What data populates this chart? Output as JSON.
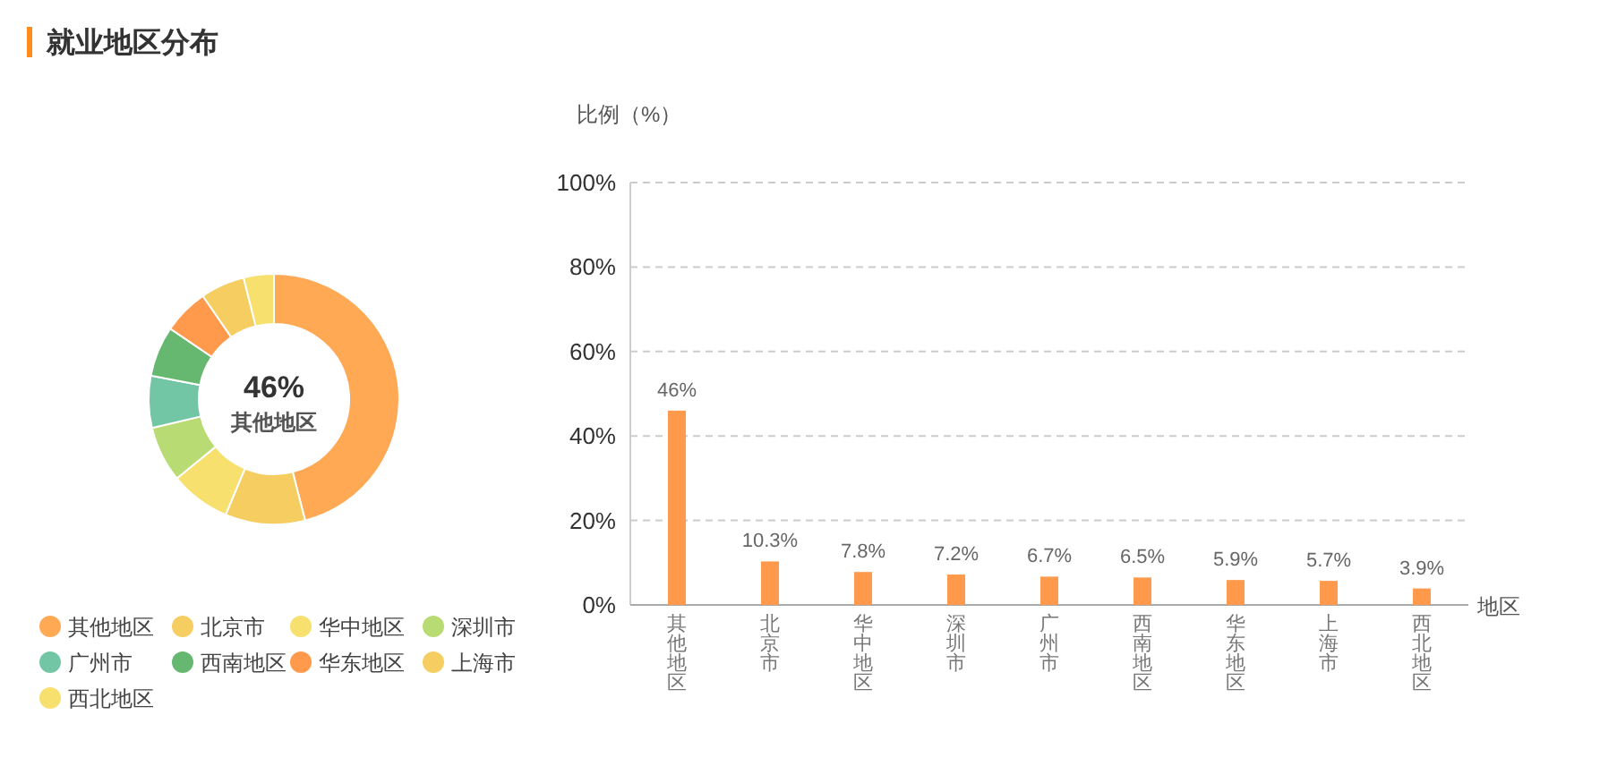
{
  "chart_data": [
    {
      "type": "donut",
      "title": "就业地区分布",
      "categories": [
        "其他地区",
        "北京市",
        "华中地区",
        "深圳市",
        "广州市",
        "西南地区",
        "华东地区",
        "上海市",
        "西北地区"
      ],
      "values": [
        46,
        10.3,
        7.8,
        7.2,
        6.7,
        6.5,
        5.9,
        5.7,
        3.9
      ],
      "colors": [
        "#ffa955",
        "#f5cd61",
        "#f7e06e",
        "#b8db73",
        "#73c6a5",
        "#66b870",
        "#ff9a4d",
        "#f5cd61",
        "#f7e06e"
      ],
      "annotations": [
        "46%",
        "其他地区"
      ],
      "legend": "bottom"
    },
    {
      "type": "bar",
      "ylabel": "比例（%）",
      "xlabel": "地区",
      "categories": [
        "其他地区",
        "北京市",
        "华中地区",
        "深圳市",
        "广州市",
        "西南地区",
        "华东地区",
        "上海市",
        "西北地区"
      ],
      "series": [
        {
          "color": "#ff9a4d",
          "values": [
            46,
            10.3,
            7.8,
            7.2,
            6.7,
            6.5,
            5.9,
            5.7,
            3.9
          ]
        }
      ],
      "value_labels": [
        "46%",
        "10.3%",
        "7.8%",
        "7.2%",
        "6.7%",
        "6.5%",
        "5.9%",
        "5.7%",
        "3.9%"
      ],
      "ylim": [
        0,
        100
      ],
      "yticks": [
        {
          "value": 0,
          "label": "0%"
        },
        {
          "value": 20,
          "label": "20%"
        },
        {
          "value": 40,
          "label": "40%"
        },
        {
          "value": 60,
          "label": "60%"
        },
        {
          "value": 80,
          "label": "80%"
        },
        {
          "value": 100,
          "label": "100%"
        }
      ],
      "grid": "y"
    }
  ]
}
